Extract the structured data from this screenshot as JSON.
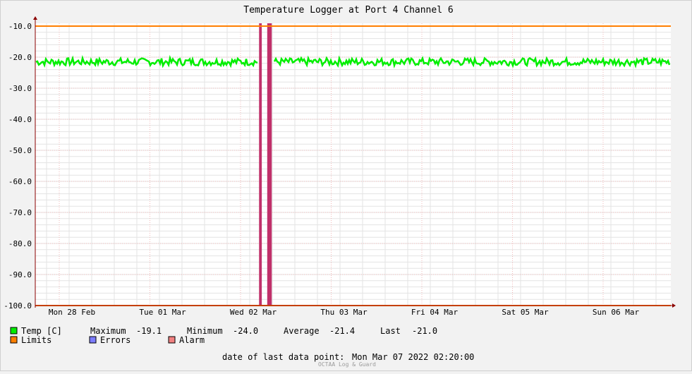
{
  "chart_data": {
    "type": "line",
    "title": "Temperature Logger at Port 4 Channel 6",
    "ylim": [
      -100,
      -10
    ],
    "y_ticks": [
      "-10.0",
      "-20.0",
      "-30.0",
      "-40.0",
      "-50.0",
      "-60.0",
      "-70.0",
      "-80.0",
      "-90.0",
      "-100.0"
    ],
    "y_tick_values": [
      -10,
      -20,
      -30,
      -40,
      -50,
      -60,
      -70,
      -80,
      -90,
      -100
    ],
    "x_range_days": [
      0,
      7
    ],
    "x_tick_labels": [
      "Mon 28 Feb",
      "Tue 01 Mar",
      "Wed 02 Mar",
      "Thu 03 Mar",
      "Fri 04 Mar",
      "Sat 05 Mar",
      "Sun 06 Mar"
    ],
    "grid": true,
    "series": [
      {
        "name": "Temp [C]",
        "color": "#00ee00",
        "kind": "line",
        "mean": -21.4,
        "min": -24.0,
        "max": -19.1,
        "last": -21.0
      },
      {
        "name": "Limits",
        "color": "#ff7f00",
        "kind": "hline",
        "values": [
          -10,
          -100
        ]
      },
      {
        "name": "Errors",
        "color": "#7d7dff",
        "kind": "band",
        "intervals": []
      },
      {
        "name": "Alarm",
        "color": "#c0306a",
        "kind": "band",
        "intervals": [
          [
            2.36,
            2.39
          ],
          [
            2.45,
            2.5
          ]
        ]
      }
    ]
  },
  "legend": {
    "temp": {
      "label": "Temp [C]",
      "color": "#00ee00"
    },
    "limits": {
      "label": "Limits",
      "color": "#ff7f00"
    },
    "errors": {
      "label": "Errors",
      "color": "#7d7dff"
    },
    "alarm": {
      "label": "Alarm",
      "color": "#f08080"
    },
    "stats": {
      "max_label": "Maximum",
      "max_value": "-19.1",
      "min_label": "Minimum",
      "min_value": "-24.0",
      "avg_label": "Average",
      "avg_value": "-21.4",
      "last_label": "Last",
      "last_value": "-21.0"
    }
  },
  "footer": {
    "last_point_label": "date of last data point:",
    "last_point_value": "Mon Mar 07 2022 02:20:00",
    "credit": "OCTAA Log & Guard"
  }
}
